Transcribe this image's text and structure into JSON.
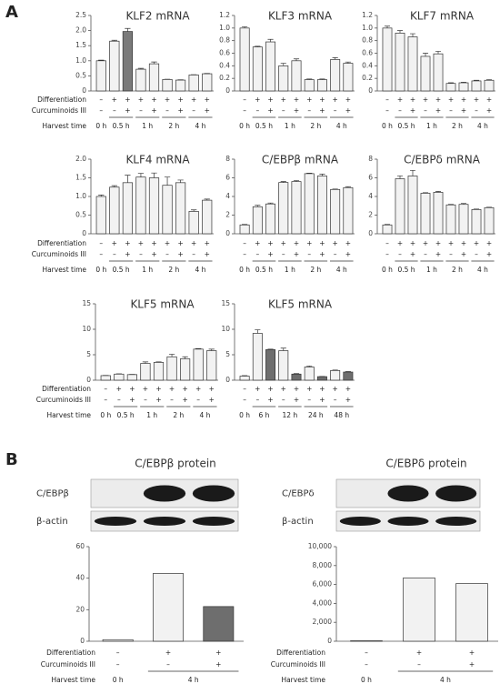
{
  "panel_labels": [
    "A",
    "B"
  ],
  "chart_data": [
    {
      "type": "bar",
      "title": "KLF2 mRNA",
      "ylim": [
        0,
        2.5
      ],
      "yticks": [
        0,
        0.5,
        {
          "value": 1,
          "label": "1.0"
        },
        1.5,
        {
          "value": 2,
          "label": "2.0"
        },
        2.5
      ],
      "values": [
        1.0,
        1.65,
        1.97,
        0.72,
        0.9,
        0.38,
        0.36,
        0.53,
        0.57
      ],
      "errors": [
        0.02,
        0.03,
        0.1,
        0.03,
        0.06,
        0.01,
        0.01,
        0.01,
        0.01
      ],
      "colors": [
        "#f2f2f2",
        "#f2f2f2",
        "#7a7a7a",
        "#f2f2f2",
        "#f2f2f2",
        "#f2f2f2",
        "#f2f2f2",
        "#f2f2f2",
        "#f2f2f2"
      ],
      "row_labels": [
        "Differentiation",
        "Curcuminoids III",
        "Harvest time"
      ],
      "differentiation": [
        "–",
        "+",
        "+",
        "+",
        "+",
        "+",
        "+",
        "+",
        "+"
      ],
      "curcuminoids": [
        "–",
        "–",
        "+",
        "–",
        "+",
        "–",
        "+",
        "–",
        "+"
      ],
      "harvest_time": [
        "0 h",
        "0.5 h",
        "1 h",
        "2 h",
        "4 h"
      ]
    },
    {
      "type": "bar",
      "title": "KLF3 mRNA",
      "ylim": [
        0,
        1.2
      ],
      "yticks": [
        0,
        0.2,
        0.4,
        0.6,
        0.8,
        {
          "value": 1,
          "label": "1.0"
        },
        1.2
      ],
      "values": [
        1.0,
        0.7,
        0.78,
        0.4,
        0.48,
        0.18,
        0.18,
        0.5,
        0.44
      ],
      "errors": [
        0.02,
        0.01,
        0.04,
        0.04,
        0.03,
        0.01,
        0.01,
        0.03,
        0.02
      ],
      "colors": [
        "#f2f2f2",
        "#f2f2f2",
        "#f2f2f2",
        "#f2f2f2",
        "#f2f2f2",
        "#f2f2f2",
        "#f2f2f2",
        "#f2f2f2",
        "#f2f2f2"
      ],
      "differentiation": [
        "–",
        "+",
        "+",
        "+",
        "+",
        "+",
        "+",
        "+",
        "+"
      ],
      "curcuminoids": [
        "–",
        "–",
        "+",
        "–",
        "+",
        "–",
        "+",
        "–",
        "+"
      ],
      "harvest_time": [
        "0 h",
        "0.5 h",
        "1 h",
        "2 h",
        "4 h"
      ]
    },
    {
      "type": "bar",
      "title": "KLF7 mRNA",
      "ylim": [
        0,
        1.2
      ],
      "yticks": [
        0,
        0.2,
        0.4,
        0.6,
        0.8,
        {
          "value": 1,
          "label": "1.0"
        },
        1.2
      ],
      "values": [
        1.0,
        0.92,
        0.86,
        0.55,
        0.59,
        0.12,
        0.13,
        0.16,
        0.17
      ],
      "errors": [
        0.03,
        0.04,
        0.05,
        0.05,
        0.04,
        0.01,
        0.01,
        0.01,
        0.01
      ],
      "colors": [
        "#f2f2f2",
        "#f2f2f2",
        "#f2f2f2",
        "#f2f2f2",
        "#f2f2f2",
        "#f2f2f2",
        "#f2f2f2",
        "#f2f2f2",
        "#f2f2f2"
      ],
      "differentiation": [
        "–",
        "+",
        "+",
        "+",
        "+",
        "+",
        "+",
        "+",
        "+"
      ],
      "curcuminoids": [
        "–",
        "–",
        "+",
        "–",
        "+",
        "–",
        "+",
        "–",
        "+"
      ],
      "harvest_time": [
        "0 h",
        "0.5 h",
        "1 h",
        "2 h",
        "4 h"
      ]
    },
    {
      "type": "bar",
      "title": "KLF4 mRNA",
      "ylim": [
        0,
        2
      ],
      "yticks": [
        0,
        0.5,
        {
          "value": 1,
          "label": "1.0"
        },
        1.5,
        {
          "value": 2,
          "label": "2.0"
        }
      ],
      "values": [
        1.0,
        1.25,
        1.37,
        1.52,
        1.5,
        1.3,
        1.37,
        0.6,
        0.9
      ],
      "errors": [
        0.04,
        0.04,
        0.2,
        0.1,
        0.13,
        0.22,
        0.07,
        0.04,
        0.03
      ],
      "colors": [
        "#f2f2f2",
        "#f2f2f2",
        "#f2f2f2",
        "#f2f2f2",
        "#f2f2f2",
        "#f2f2f2",
        "#f2f2f2",
        "#f2f2f2",
        "#f2f2f2"
      ],
      "row_labels": [
        "Differentiation",
        "Curcuminoids III",
        "Harvest time"
      ],
      "differentiation": [
        "–",
        "+",
        "+",
        "+",
        "+",
        "+",
        "+",
        "+",
        "+"
      ],
      "curcuminoids": [
        "–",
        "–",
        "+",
        "–",
        "+",
        "–",
        "+",
        "–",
        "+"
      ],
      "harvest_time": [
        "0 h",
        "0.5 h",
        "1 h",
        "2 h",
        "4 h"
      ]
    },
    {
      "type": "bar",
      "title": "C/EBPβ mRNA",
      "ylim": [
        0,
        8
      ],
      "yticks": [
        0,
        2,
        4,
        6,
        8
      ],
      "values": [
        0.95,
        2.9,
        3.2,
        5.5,
        5.6,
        6.45,
        6.2,
        4.75,
        4.95
      ],
      "errors": [
        0.05,
        0.15,
        0.1,
        0.1,
        0.1,
        0.05,
        0.2,
        0.05,
        0.1
      ],
      "colors": [
        "#f2f2f2",
        "#f2f2f2",
        "#f2f2f2",
        "#f2f2f2",
        "#f2f2f2",
        "#f2f2f2",
        "#f2f2f2",
        "#f2f2f2",
        "#f2f2f2"
      ],
      "differentiation": [
        "–",
        "+",
        "+",
        "+",
        "+",
        "+",
        "+",
        "+",
        "+"
      ],
      "curcuminoids": [
        "–",
        "–",
        "+",
        "–",
        "+",
        "–",
        "+",
        "–",
        "+"
      ],
      "harvest_time": [
        "0 h",
        "0.5 h",
        "1 h",
        "2 h",
        "4 h"
      ]
    },
    {
      "type": "bar",
      "title": "C/EBPδ mRNA",
      "ylim": [
        0,
        8
      ],
      "yticks": [
        0,
        2,
        4,
        6,
        8
      ],
      "values": [
        0.95,
        5.9,
        6.2,
        4.35,
        4.45,
        3.1,
        3.15,
        2.6,
        2.8
      ],
      "errors": [
        0.05,
        0.3,
        0.6,
        0.05,
        0.1,
        0.05,
        0.1,
        0.05,
        0.05
      ],
      "colors": [
        "#f2f2f2",
        "#f2f2f2",
        "#f2f2f2",
        "#f2f2f2",
        "#f2f2f2",
        "#f2f2f2",
        "#f2f2f2",
        "#f2f2f2",
        "#f2f2f2"
      ],
      "differentiation": [
        "–",
        "+",
        "+",
        "+",
        "+",
        "+",
        "+",
        "+",
        "+"
      ],
      "curcuminoids": [
        "–",
        "–",
        "+",
        "–",
        "+",
        "–",
        "+",
        "–",
        "+"
      ],
      "harvest_time": [
        "0 h",
        "0.5 h",
        "1 h",
        "2 h",
        "4 h"
      ]
    },
    {
      "type": "bar",
      "title": "KLF5 mRNA",
      "ylim": [
        0,
        15
      ],
      "yticks": [
        0,
        5,
        10,
        15
      ],
      "values": [
        0.9,
        1.2,
        1.1,
        3.3,
        3.5,
        4.6,
        4.2,
        6.1,
        5.8
      ],
      "errors": [
        0.05,
        0.05,
        0.05,
        0.3,
        0.1,
        0.5,
        0.4,
        0.1,
        0.3
      ],
      "colors": [
        "#f2f2f2",
        "#f2f2f2",
        "#f2f2f2",
        "#f2f2f2",
        "#f2f2f2",
        "#f2f2f2",
        "#f2f2f2",
        "#f2f2f2",
        "#f2f2f2"
      ],
      "row_labels": [
        "Differentiation",
        "Curcuminoids III",
        "Harvest time"
      ],
      "differentiation": [
        "–",
        "+",
        "+",
        "+",
        "+",
        "+",
        "+",
        "+",
        "+"
      ],
      "curcuminoids": [
        "–",
        "–",
        "+",
        "–",
        "+",
        "–",
        "+",
        "–",
        "+"
      ],
      "harvest_time": [
        "0 h",
        "0.5 h",
        "1 h",
        "2 h",
        "4 h"
      ]
    },
    {
      "type": "bar",
      "title": "KLF5 mRNA",
      "ylim": [
        0,
        15
      ],
      "yticks": [
        0,
        5,
        10,
        15
      ],
      "values": [
        0.8,
        9.2,
        6.0,
        5.8,
        1.2,
        2.6,
        0.7,
        1.9,
        1.6
      ],
      "errors": [
        0.1,
        0.7,
        0.1,
        0.5,
        0.1,
        0.2,
        0.05,
        0.1,
        0.1
      ],
      "colors": [
        "#f2f2f2",
        "#f2f2f2",
        "#6e6e6e",
        "#f2f2f2",
        "#6e6e6e",
        "#f2f2f2",
        "#6e6e6e",
        "#f2f2f2",
        "#6e6e6e"
      ],
      "differentiation": [
        "–",
        "+",
        "+",
        "+",
        "+",
        "+",
        "+",
        "+",
        "+"
      ],
      "curcuminoids": [
        "–",
        "–",
        "+",
        "–",
        "+",
        "–",
        "+",
        "–",
        "+"
      ],
      "harvest_time": [
        "0 h",
        "6 h",
        "12 h",
        "24 h",
        "48 h"
      ]
    },
    {
      "type": "bar",
      "title": "C/EBPβ protein",
      "blot_labels": [
        "C/EBPβ",
        "β-actin"
      ],
      "ylim": [
        0,
        60
      ],
      "yticks": [
        0,
        20,
        40,
        60
      ],
      "values": [
        1,
        43,
        22
      ],
      "colors": [
        "#f2f2f2",
        "#f2f2f2",
        "#6e6e6e"
      ],
      "row_labels": [
        "Differentiation",
        "Curcuminoids III",
        "Harvest time"
      ],
      "differentiation": [
        "–",
        "+",
        "+"
      ],
      "curcuminoids": [
        "–",
        "–",
        "+"
      ],
      "harvest_time": [
        "0 h",
        "4 h"
      ]
    },
    {
      "type": "bar",
      "title": "C/EBPδ protein",
      "blot_labels": [
        "C/EBPδ",
        "β-actin"
      ],
      "ylim": [
        0,
        10000
      ],
      "yticks": [
        0,
        {
          "value": 2000,
          "label": "2,000"
        },
        {
          "value": 4000,
          "label": "4,000"
        },
        {
          "value": 6000,
          "label": "6,000"
        },
        {
          "value": 8000,
          "label": "8,000"
        },
        {
          "value": 10000,
          "label": "10,000"
        }
      ],
      "values": [
        50,
        6700,
        6100
      ],
      "colors": [
        "#f2f2f2",
        "#f2f2f2",
        "#f2f2f2"
      ],
      "row_labels": [
        "Differentiation",
        "Curcuminoids III",
        "Harvest time"
      ],
      "differentiation": [
        "–",
        "+",
        "+"
      ],
      "curcuminoids": [
        "–",
        "–",
        "+"
      ],
      "harvest_time": [
        "0 h",
        "4 h"
      ]
    }
  ]
}
